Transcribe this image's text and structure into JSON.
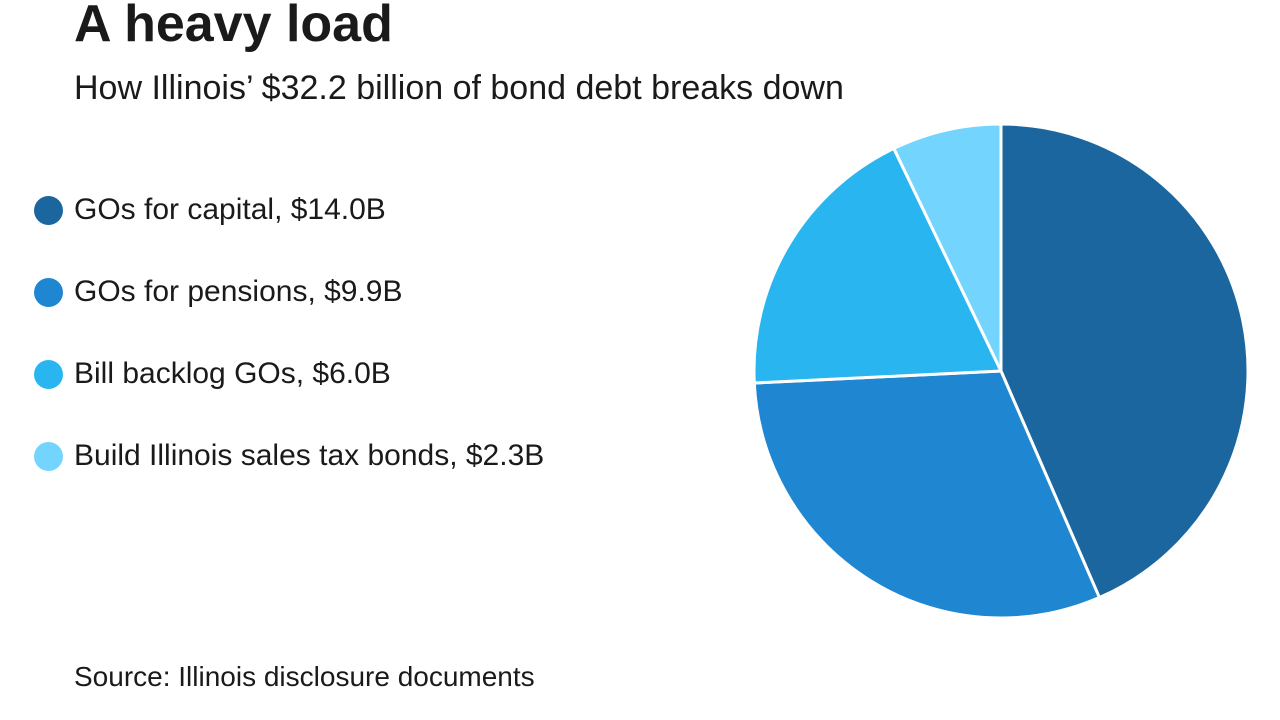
{
  "title": "A heavy load",
  "subtitle": "How Illinois’ $32.2 billion of bond debt breaks down",
  "source": "Source: Illinois disclosure documents",
  "chart_data": {
    "type": "pie",
    "total_label": "$32.2 billion",
    "slices": [
      {
        "label": "GOs for capital, $14.0B",
        "value": 14.0,
        "color": "#1b669e"
      },
      {
        "label": "GOs for pensions, $9.9B",
        "value": 9.9,
        "color": "#1f87d1"
      },
      {
        "label": "Bill backlog GOs, $6.0B",
        "value": 6.0,
        "color": "#29b6f0"
      },
      {
        "label": "Build Illinois sales tax bonds, $2.3B",
        "value": 2.3,
        "color": "#73d5fd"
      }
    ],
    "legend_position": "left",
    "slice_border_color": "#ffffff"
  }
}
